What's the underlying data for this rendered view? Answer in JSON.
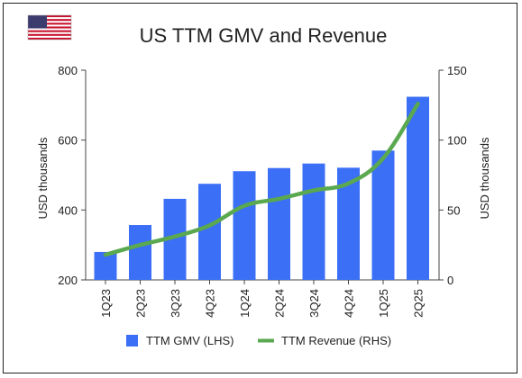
{
  "chart_data": {
    "type": "bar",
    "title": "US TTM GMV and Revenue",
    "categories": [
      "1Q23",
      "2Q23",
      "3Q23",
      "4Q23",
      "1Q24",
      "2Q24",
      "3Q24",
      "4Q24",
      "1Q25",
      "2Q25"
    ],
    "series": [
      {
        "name": "TTM GMV (LHS)",
        "type": "bar",
        "axis": "left",
        "color": "#3b6ff5",
        "values": [
          280,
          357,
          432,
          475,
          511,
          520,
          533,
          521,
          570,
          724
        ]
      },
      {
        "name": "TTM Revenue (RHS)",
        "type": "line",
        "axis": "right",
        "color": "#5aa84f",
        "values": [
          18,
          25,
          31,
          39,
          53,
          58,
          64,
          69,
          87,
          126
        ]
      }
    ],
    "left_axis": {
      "label": "USD thousands",
      "ylim": [
        200,
        800
      ],
      "ticks": [
        "200",
        "400",
        "600",
        "800"
      ]
    },
    "right_axis": {
      "label": "USD thousands",
      "ylim": [
        0,
        150
      ],
      "ticks": [
        "0",
        "50",
        "100",
        "150"
      ]
    },
    "grid": false,
    "legend_position": "bottom"
  },
  "flag_icon": "us-flag-icon"
}
